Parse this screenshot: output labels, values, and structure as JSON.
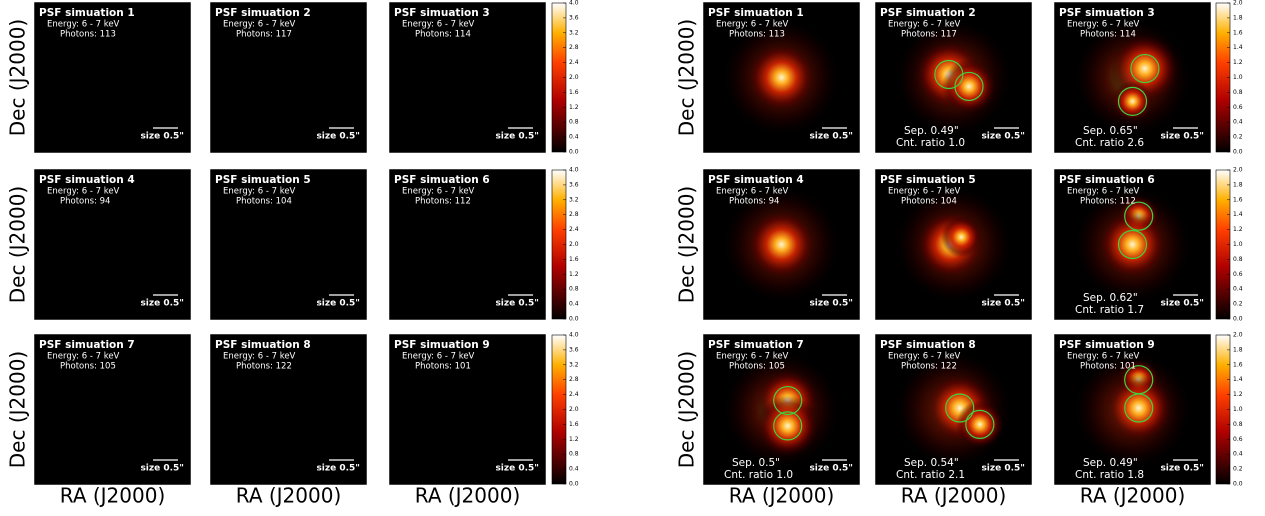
{
  "axis_labels": {
    "y": "Dec (J2000)",
    "x": "RA (J2000)"
  },
  "left": {
    "panels": [
      {
        "title": "PSF simuation 1",
        "energy": "Energy: 6 - 7 keV",
        "photons": "Photons: 113",
        "scale": "size 0.5\""
      },
      {
        "title": "PSF simuation 2",
        "energy": "Energy: 6 - 7 keV",
        "photons": "Photons: 117",
        "scale": "size 0.5\""
      },
      {
        "title": "PSF simuation 3",
        "energy": "Energy: 6 - 7 keV",
        "photons": "Photons: 114",
        "scale": "size 0.5\""
      },
      {
        "title": "PSF simuation 4",
        "energy": "Energy: 6 - 7 keV",
        "photons": "Photons: 94",
        "scale": "size 0.5\""
      },
      {
        "title": "PSF simuation 5",
        "energy": "Energy: 6 - 7 keV",
        "photons": "Photons: 104",
        "scale": "size 0.5\""
      },
      {
        "title": "PSF simuation 6",
        "energy": "Energy: 6 - 7 keV",
        "photons": "Photons: 112",
        "scale": "size 0.5\""
      },
      {
        "title": "PSF simuation 7",
        "energy": "Energy: 6 - 7 keV",
        "photons": "Photons: 105",
        "scale": "size 0.5\""
      },
      {
        "title": "PSF simuation 8",
        "energy": "Energy: 6 - 7 keV",
        "photons": "Photons: 122",
        "scale": "size 0.5\""
      },
      {
        "title": "PSF simuation 9",
        "energy": "Energy: 6 - 7 keV",
        "photons": "Photons: 101",
        "scale": "size 0.5\""
      }
    ],
    "colorbar_ticks": [
      "0.0",
      "0.4",
      "0.8",
      "1.2",
      "1.6",
      "2.0",
      "2.4",
      "2.8",
      "3.2",
      "3.6",
      "4.0"
    ]
  },
  "right": {
    "panels": [
      {
        "title": "PSF simuation 1",
        "energy": "Energy: 6 - 7 keV",
        "photons": "Photons: 113",
        "scale": "size 0.5\""
      },
      {
        "title": "PSF simuation 2",
        "energy": "Energy: 6 - 7 keV",
        "photons": "Photons: 117",
        "scale": "size 0.5\"",
        "sep": "Sep. 0.49\"",
        "ratio": "Cnt. ratio 1.0"
      },
      {
        "title": "PSF simuation 3",
        "energy": "Energy: 6 - 7 keV",
        "photons": "Photons: 114",
        "scale": "size 0.5\"",
        "sep": "Sep. 0.65\"",
        "ratio": "Cnt. ratio 2.6"
      },
      {
        "title": "PSF simuation 4",
        "energy": "Energy: 6 - 7 keV",
        "photons": "Photons: 94",
        "scale": "size 0.5\""
      },
      {
        "title": "PSF simuation 5",
        "energy": "Energy: 6 - 7 keV",
        "photons": "Photons: 104",
        "scale": "size 0.5\""
      },
      {
        "title": "PSF simuation 6",
        "energy": "Energy: 6 - 7 keV",
        "photons": "Photons: 112",
        "scale": "size 0.5\"",
        "sep": "Sep. 0.62\"",
        "ratio": "Cnt. ratio 1.7"
      },
      {
        "title": "PSF simuation 7",
        "energy": "Energy: 6 - 7 keV",
        "photons": "Photons: 105",
        "scale": "size 0.5\"",
        "sep": "Sep. 0.5\"",
        "ratio": "Cnt. ratio 1.0"
      },
      {
        "title": "PSF simuation 8",
        "energy": "Energy: 6 - 7 keV",
        "photons": "Photons: 122",
        "scale": "size 0.5\"",
        "sep": "Sep. 0.54\"",
        "ratio": "Cnt. ratio 2.1"
      },
      {
        "title": "PSF simuation 9",
        "energy": "Energy: 6 - 7 keV",
        "photons": "Photons: 101",
        "scale": "size 0.5\"",
        "sep": "Sep. 0.49\"",
        "ratio": "Cnt. ratio 1.8"
      }
    ],
    "colorbar_ticks": [
      "0.0",
      "0.2",
      "0.4",
      "0.6",
      "0.8",
      "1.0",
      "1.2",
      "1.4",
      "1.6",
      "1.8",
      "2.0"
    ]
  }
}
